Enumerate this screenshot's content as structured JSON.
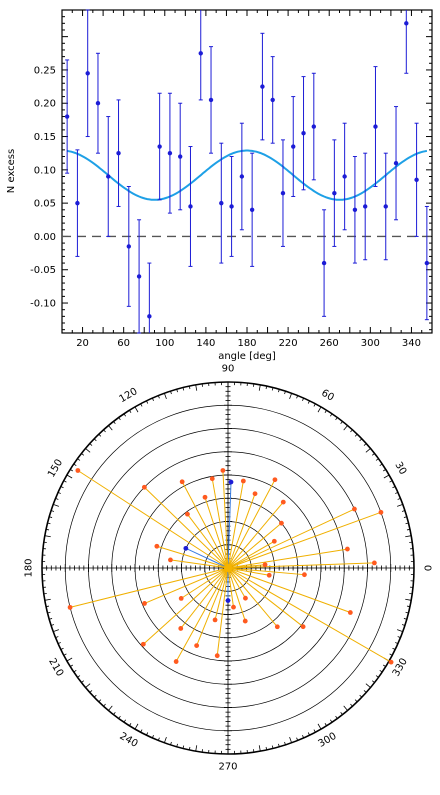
{
  "chart_data": [
    {
      "type": "scatter",
      "title": "",
      "xlabel": "angle [deg]",
      "ylabel": "N excess",
      "xlim": [
        0,
        360
      ],
      "ylim": [
        -0.145,
        0.34
      ],
      "xticks": [
        20,
        60,
        100,
        140,
        180,
        220,
        260,
        300,
        340
      ],
      "yticks": [
        -0.1,
        -0.05,
        0.0,
        0.05,
        0.1,
        0.15,
        0.2,
        0.25
      ],
      "ytick_labels": [
        "-0.10",
        "-0.05",
        "0.00",
        "0.05",
        "0.10",
        "0.15",
        "0.20",
        "0.25"
      ],
      "zero_line": {
        "y": 0,
        "style": "dashed"
      },
      "fit_curve": {
        "form": "a + b*cos(2*(x - x0))",
        "a": 0.092,
        "b": 0.037,
        "x0": 0,
        "color": "#1ea0e6"
      },
      "marker_color": "#1c1cd6",
      "series": [
        {
          "x": [
            5,
            15,
            25,
            35,
            45,
            55,
            65,
            75,
            85,
            95,
            105,
            115,
            125,
            135,
            145,
            155,
            165,
            175,
            185,
            195,
            205,
            215,
            225,
            235,
            245,
            255,
            265,
            275,
            285,
            295,
            305,
            315,
            325,
            335,
            345,
            355
          ],
          "y": [
            0.18,
            0.05,
            0.245,
            0.2,
            0.09,
            0.125,
            -0.015,
            -0.06,
            -0.12,
            0.135,
            0.125,
            0.12,
            0.045,
            0.275,
            0.205,
            0.05,
            0.045,
            0.09,
            0.04,
            0.225,
            0.205,
            0.065,
            0.135,
            0.155,
            0.165,
            -0.04,
            0.065,
            0.09,
            0.04,
            0.045,
            0.165,
            0.045,
            0.11,
            0.32,
            0.085,
            -0.04
          ],
          "yerr": [
            0.085,
            0.08,
            0.095,
            0.075,
            0.09,
            0.08,
            0.09,
            0.085,
            0.08,
            0.08,
            0.09,
            0.08,
            0.09,
            0.07,
            0.08,
            0.09,
            0.075,
            0.08,
            0.085,
            0.08,
            0.065,
            0.08,
            0.075,
            0.085,
            0.08,
            0.08,
            0.08,
            0.08,
            0.08,
            0.08,
            0.09,
            0.08,
            0.085,
            0.075,
            0.085,
            0.085
          ]
        }
      ]
    },
    {
      "type": "scatter",
      "subtype": "polar",
      "title": "",
      "angle_ticks": [
        0,
        30,
        60,
        90,
        120,
        150,
        180,
        210,
        240,
        270,
        300,
        330
      ],
      "rings": 8,
      "rlim": [
        0,
        8
      ],
      "center_color": "#f5b400",
      "points": [
        {
          "angle": 2,
          "r": 6.3,
          "color": "#ff5a1f"
        },
        {
          "angle": 5,
          "r": 1.6,
          "color": "#ff5a1f"
        },
        {
          "angle": 9,
          "r": 5.2,
          "color": "#ff5a1f"
        },
        {
          "angle": 20,
          "r": 7.0,
          "color": "#ff5a1f"
        },
        {
          "angle": 25,
          "r": 6.0,
          "color": "#ff5a1f"
        },
        {
          "angle": 30,
          "r": 2.3,
          "color": "#ff5a1f"
        },
        {
          "angle": 40,
          "r": 3.0,
          "color": "#ff5a1f"
        },
        {
          "angle": 50,
          "r": 3.7,
          "color": "#ff5a1f"
        },
        {
          "angle": 62,
          "r": 4.3,
          "color": "#ff5a1f"
        },
        {
          "angle": 70,
          "r": 3.4,
          "color": "#ff5a1f"
        },
        {
          "angle": 80,
          "r": 3.8,
          "color": "#ff5a1f"
        },
        {
          "angle": 88,
          "r": 3.7,
          "color": "#1c1cd6"
        },
        {
          "angle": 93,
          "r": 4.2,
          "color": "#ff5a1f"
        },
        {
          "angle": 100,
          "r": 3.9,
          "color": "#ff5a1f"
        },
        {
          "angle": 108,
          "r": 3.2,
          "color": "#ff5a1f"
        },
        {
          "angle": 118,
          "r": 4.2,
          "color": "#ff5a1f"
        },
        {
          "angle": 127,
          "r": 2.9,
          "color": "#ff5a1f"
        },
        {
          "angle": 136,
          "r": 5.0,
          "color": "#ff5a1f"
        },
        {
          "angle": 147,
          "r": 7.7,
          "color": "#ff5a1f"
        },
        {
          "angle": 155,
          "r": 2.0,
          "color": "#1c1cd6"
        },
        {
          "angle": 163,
          "r": 3.2,
          "color": "#ff5a1f"
        },
        {
          "angle": 172,
          "r": 2.5,
          "color": "#ff5a1f"
        },
        {
          "angle": 194,
          "r": 7.0,
          "color": "#ff5a1f"
        },
        {
          "angle": 203,
          "r": 3.9,
          "color": "#ff5a1f"
        },
        {
          "angle": 213,
          "r": 2.4,
          "color": "#ff5a1f"
        },
        {
          "angle": 222,
          "r": 4.9,
          "color": "#ff5a1f"
        },
        {
          "angle": 232,
          "r": 3.3,
          "color": "#ff5a1f"
        },
        {
          "angle": 241,
          "r": 4.6,
          "color": "#ff5a1f"
        },
        {
          "angle": 248,
          "r": 3.6,
          "color": "#ff5a1f"
        },
        {
          "angle": 256,
          "r": 2.3,
          "color": "#ff5a1f"
        },
        {
          "angle": 263,
          "r": 3.8,
          "color": "#ff5a1f"
        },
        {
          "angle": 270,
          "r": 1.4,
          "color": "#1c1cd6"
        },
        {
          "angle": 278,
          "r": 1.7,
          "color": "#ff5a1f"
        },
        {
          "angle": 288,
          "r": 2.4,
          "color": "#ff5a1f"
        },
        {
          "angle": 300,
          "r": 1.5,
          "color": "#ff5a1f"
        },
        {
          "angle": 310,
          "r": 3.3,
          "color": "#ff5a1f"
        },
        {
          "angle": 322,
          "r": 4.1,
          "color": "#ff5a1f"
        },
        {
          "angle": 330,
          "r": 8.1,
          "color": "#ff5a1f"
        },
        {
          "angle": 340,
          "r": 5.6,
          "color": "#ff5a1f"
        },
        {
          "angle": 350,
          "r": 1.8,
          "color": "#ff5a1f"
        },
        {
          "angle": 355,
          "r": 3.3,
          "color": "#ff5a1f"
        }
      ]
    }
  ]
}
